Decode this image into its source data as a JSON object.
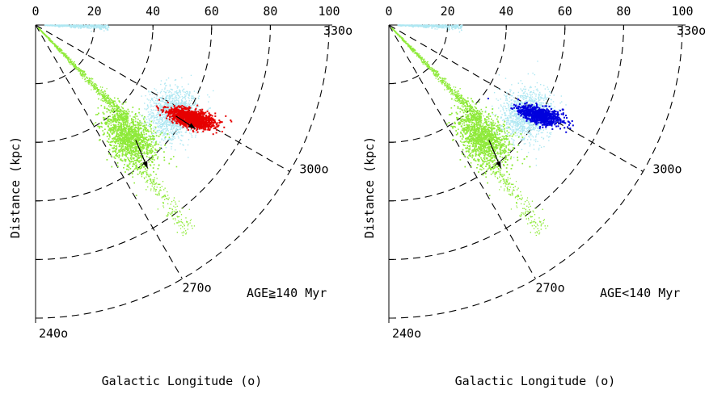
{
  "figure": {
    "ylabel": "Distance (kpc)",
    "xlabel": "Galactic Longitude (o)"
  },
  "chart_data": [
    {
      "type": "scatter",
      "projection": "polar-wedge",
      "annotation": "AGE≧140 Myr",
      "distance_ticks": [
        "0",
        "20",
        "40",
        "60",
        "80",
        "100"
      ],
      "distance_range": [
        0,
        100
      ],
      "distance_gridlines": [
        20,
        40,
        60,
        80,
        100
      ],
      "angle_labels": [
        "240o",
        "270o",
        "300o",
        "330o"
      ],
      "angle_range_deg": [
        240,
        330
      ],
      "angle_gridlines_deg": [
        270,
        300
      ],
      "colors": {
        "background_stars": "#aee7f2",
        "green_population": "#8fea3a",
        "highlight": "#e60000"
      },
      "series": [
        {
          "role": "background",
          "color": "#aee7f2",
          "center": {
            "longitude": 297,
            "distance": 56
          },
          "count": 1700
        },
        {
          "role": "green",
          "color": "#8fea3a",
          "center": {
            "longitude": 280,
            "distance": 50
          },
          "count": 4000
        },
        {
          "role": "highlight",
          "color": "#e60000",
          "center": {
            "longitude": 299,
            "distance": 62
          },
          "count": 1300
        }
      ],
      "arrows": [
        {
          "from": {
            "longitude": 281,
            "distance": 52
          },
          "to": {
            "longitude": 278,
            "distance": 62
          }
        },
        {
          "from": {
            "longitude": 297,
            "distance": 57
          },
          "to": {
            "longitude": 297,
            "distance": 65
          }
        }
      ]
    },
    {
      "type": "scatter",
      "projection": "polar-wedge",
      "annotation": "AGE<140 Myr",
      "distance_ticks": [
        "0",
        "20",
        "40",
        "60",
        "80",
        "100"
      ],
      "distance_range": [
        0,
        100
      ],
      "distance_gridlines": [
        20,
        40,
        60,
        80,
        100
      ],
      "angle_labels": [
        "240o",
        "270o",
        "300o",
        "330o"
      ],
      "angle_range_deg": [
        240,
        330
      ],
      "angle_gridlines_deg": [
        270,
        300
      ],
      "colors": {
        "background_stars": "#aee7f2",
        "green_population": "#8fea3a",
        "highlight": "#0000dd"
      },
      "series": [
        {
          "role": "background",
          "color": "#aee7f2",
          "center": {
            "longitude": 297,
            "distance": 56
          },
          "count": 1700
        },
        {
          "role": "green",
          "color": "#8fea3a",
          "center": {
            "longitude": 280,
            "distance": 50
          },
          "count": 4000
        },
        {
          "role": "highlight",
          "color": "#0000dd",
          "center": {
            "longitude": 299,
            "distance": 60
          },
          "count": 800
        }
      ],
      "arrows": [
        {
          "from": {
            "longitude": 281,
            "distance": 52
          },
          "to": {
            "longitude": 278,
            "distance": 62
          }
        }
      ]
    }
  ]
}
